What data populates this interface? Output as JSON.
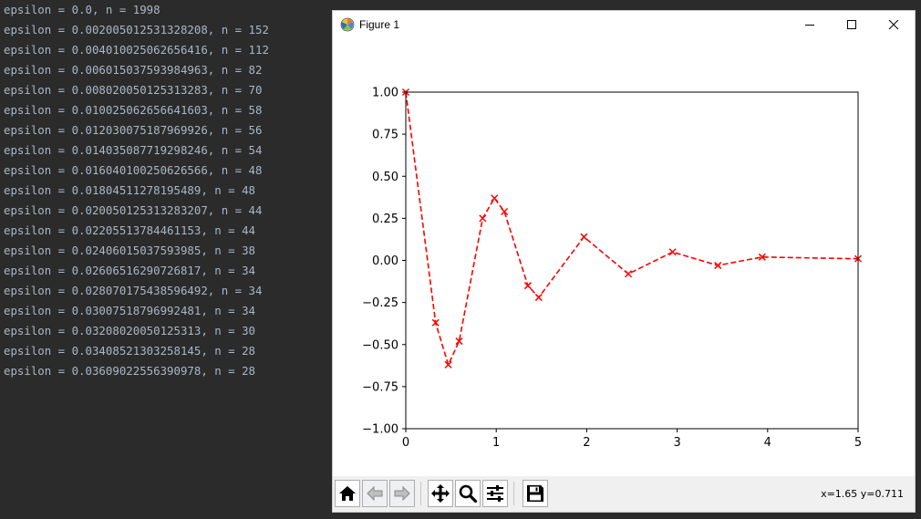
{
  "console": {
    "lines": [
      "epsilon = 0.0, n = 1998",
      "epsilon = 0.002005012531328208, n = 152",
      "epsilon = 0.004010025062656416, n = 112",
      "epsilon = 0.006015037593984963, n = 82",
      "epsilon = 0.008020050125313283, n = 70",
      "epsilon = 0.010025062656641603, n = 58",
      "epsilon = 0.012030075187969926, n = 56",
      "epsilon = 0.014035087719298246, n = 54",
      "epsilon = 0.016040100250626566, n = 48",
      "epsilon = 0.01804511278195489, n = 48",
      "epsilon = 0.020050125313283207, n = 44",
      "epsilon = 0.02205513784461153, n = 44",
      "epsilon = 0.02406015037593985, n = 38",
      "epsilon = 0.02606516290726817, n = 34",
      "epsilon = 0.028070175438596492, n = 34",
      "epsilon = 0.03007518796992481, n = 34",
      "epsilon = 0.03208020050125313, n = 30",
      "epsilon = 0.03408521303258145, n = 28",
      "epsilon = 0.03609022556390978, n = 28"
    ]
  },
  "window": {
    "title": "Figure 1",
    "coords_readout": "x=1.65 y=0.711"
  },
  "toolbar": {
    "buttons": [
      "home-icon",
      "back-arrow-icon",
      "forward-arrow-icon",
      "pan-move-icon",
      "zoom-magnifier-icon",
      "configure-subplots-icon",
      "save-floppy-icon"
    ]
  },
  "chart_data": {
    "type": "line",
    "x": [
      0,
      0.33,
      0.47,
      0.59,
      0.85,
      0.98,
      1.09,
      1.35,
      1.47,
      1.97,
      2.46,
      2.95,
      3.45,
      3.94,
      5.0
    ],
    "y": [
      1.0,
      -0.37,
      -0.62,
      -0.48,
      0.25,
      0.37,
      0.29,
      -0.15,
      -0.22,
      0.14,
      -0.08,
      0.05,
      -0.03,
      0.02,
      0.01
    ],
    "line_style": "dashed",
    "marker": "x",
    "color": "#ff0000",
    "xlim": [
      0,
      5
    ],
    "ylim": [
      -1.0,
      1.0
    ],
    "xticks": [
      "0",
      "1",
      "2",
      "3",
      "4",
      "5"
    ],
    "yticks": [
      "1.00",
      "0.75",
      "0.50",
      "0.25",
      "0.00",
      "−0.25",
      "−0.50",
      "−0.75",
      "−1.00"
    ],
    "title": "",
    "xlabel": "",
    "ylabel": "",
    "grid": false,
    "legend": false
  }
}
